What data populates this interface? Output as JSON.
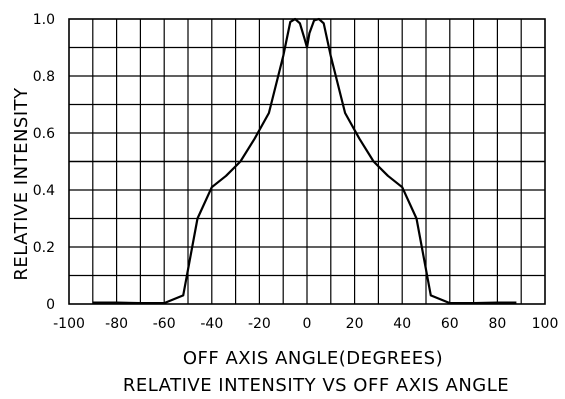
{
  "chart_data": {
    "type": "line",
    "xlabel": "OFF AXIS ANGLE(DEGREES)",
    "ylabel": "RELATIVE INTENSITY",
    "caption": "RELATIVE INTENSITY VS OFF AXIS ANGLE",
    "xlim": [
      -100,
      100
    ],
    "ylim": [
      0,
      1.0
    ],
    "xticks": [
      -100,
      -80,
      -60,
      -40,
      -20,
      0,
      20,
      40,
      60,
      80,
      100
    ],
    "xtick_labels": [
      "-100",
      "-80",
      "-60",
      "-40",
      "-20",
      "0",
      "20",
      "40",
      "60",
      "80",
      "100"
    ],
    "yticks": [
      0,
      0.2,
      0.4,
      0.6,
      0.8,
      1.0
    ],
    "ytick_labels": [
      "0",
      "0.2",
      "0.4",
      "0.6",
      "0.8",
      "1.0"
    ],
    "grid": true,
    "x_grid_step": 10,
    "y_grid_step": 0.1,
    "emphasized_gridline_y": 0.5,
    "series": [
      {
        "x": [
          -90,
          -80,
          -70,
          -60,
          -52,
          -46,
          -40,
          -34,
          -28,
          -22,
          -16,
          -10,
          -7,
          -5,
          -3,
          -1,
          0,
          1,
          3,
          5,
          7,
          10,
          16,
          22,
          28,
          34,
          40,
          46,
          52,
          60,
          70,
          80,
          88
        ],
        "y": [
          0.005,
          0.005,
          0.003,
          0.003,
          0.03,
          0.3,
          0.41,
          0.45,
          0.5,
          0.58,
          0.67,
          0.87,
          0.99,
          1.0,
          0.985,
          0.93,
          0.9,
          0.95,
          0.995,
          1.0,
          0.985,
          0.87,
          0.67,
          0.58,
          0.5,
          0.45,
          0.41,
          0.3,
          0.03,
          0.003,
          0.003,
          0.005,
          0.005
        ]
      }
    ]
  }
}
